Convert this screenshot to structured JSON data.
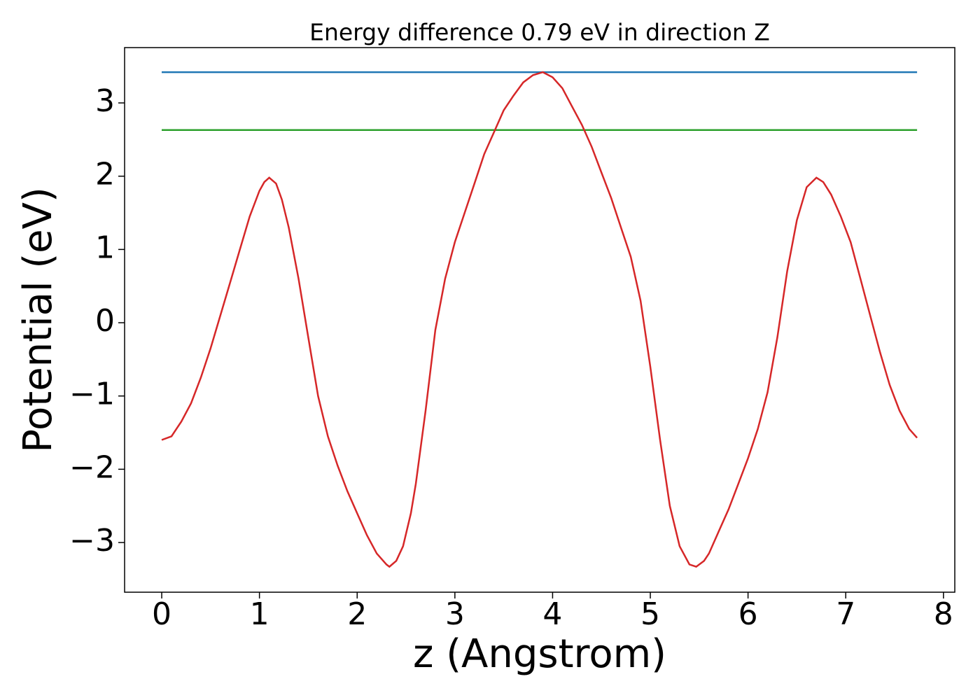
{
  "chart_data": {
    "type": "line",
    "title": "Energy difference 0.79 eV in direction Z",
    "xlabel": "z (Angstrom)",
    "ylabel": "Potential (eV)",
    "xlim": [
      -0.38,
      8.116
    ],
    "ylim": [
      -3.678,
      3.755
    ],
    "xticks": [
      0,
      1,
      2,
      3,
      4,
      5,
      6,
      7,
      8
    ],
    "yticks": [
      {
        "value": -3,
        "label": "−3"
      },
      {
        "value": -2,
        "label": "−2"
      },
      {
        "value": -1,
        "label": "−1"
      },
      0,
      1,
      2,
      3
    ],
    "series": [
      {
        "color": "#1f77b4",
        "x": [
          0,
          7.73
        ],
        "values": [
          3.42,
          3.42
        ]
      },
      {
        "color": "#2ca02c",
        "x": [
          0,
          7.73
        ],
        "values": [
          2.63,
          2.63
        ]
      },
      {
        "color": "#d62728",
        "x": [
          0,
          0.1,
          0.2,
          0.3,
          0.4,
          0.5,
          0.6,
          0.7,
          0.8,
          0.9,
          1.0,
          1.05,
          1.1,
          1.17,
          1.23,
          1.3,
          1.4,
          1.5,
          1.6,
          1.7,
          1.8,
          1.9,
          2.0,
          2.1,
          2.2,
          2.3,
          2.33,
          2.4,
          2.47,
          2.55,
          2.6,
          2.7,
          2.8,
          2.9,
          3.0,
          3.1,
          3.2,
          3.3,
          3.4,
          3.5,
          3.6,
          3.7,
          3.8,
          3.9,
          4.0,
          4.1,
          4.2,
          4.3,
          4.4,
          4.5,
          4.6,
          4.7,
          4.8,
          4.9,
          5.0,
          5.1,
          5.2,
          5.3,
          5.4,
          5.47,
          5.55,
          5.6,
          5.7,
          5.8,
          5.9,
          6.0,
          6.1,
          6.2,
          6.3,
          6.4,
          6.5,
          6.6,
          6.7,
          6.77,
          6.85,
          6.95,
          7.05,
          7.15,
          7.25,
          7.35,
          7.45,
          7.55,
          7.65,
          7.73
        ],
        "values": [
          -1.6,
          -1.55,
          -1.35,
          -1.1,
          -0.75,
          -0.35,
          0.1,
          0.55,
          1.0,
          1.45,
          1.8,
          1.92,
          1.98,
          1.9,
          1.68,
          1.3,
          0.6,
          -0.2,
          -1.0,
          -1.55,
          -1.95,
          -2.3,
          -2.6,
          -2.9,
          -3.15,
          -3.3,
          -3.33,
          -3.25,
          -3.05,
          -2.6,
          -2.2,
          -1.2,
          -0.1,
          0.6,
          1.1,
          1.5,
          1.9,
          2.3,
          2.6,
          2.9,
          3.1,
          3.28,
          3.38,
          3.42,
          3.35,
          3.2,
          2.95,
          2.7,
          2.4,
          2.05,
          1.7,
          1.3,
          0.9,
          0.3,
          -0.6,
          -1.6,
          -2.5,
          -3.05,
          -3.3,
          -3.33,
          -3.25,
          -3.15,
          -2.85,
          -2.55,
          -2.2,
          -1.85,
          -1.45,
          -0.95,
          -0.2,
          0.7,
          1.4,
          1.85,
          1.98,
          1.92,
          1.75,
          1.45,
          1.1,
          0.6,
          0.1,
          -0.4,
          -0.85,
          -1.2,
          -1.45,
          -1.57
        ]
      }
    ]
  }
}
